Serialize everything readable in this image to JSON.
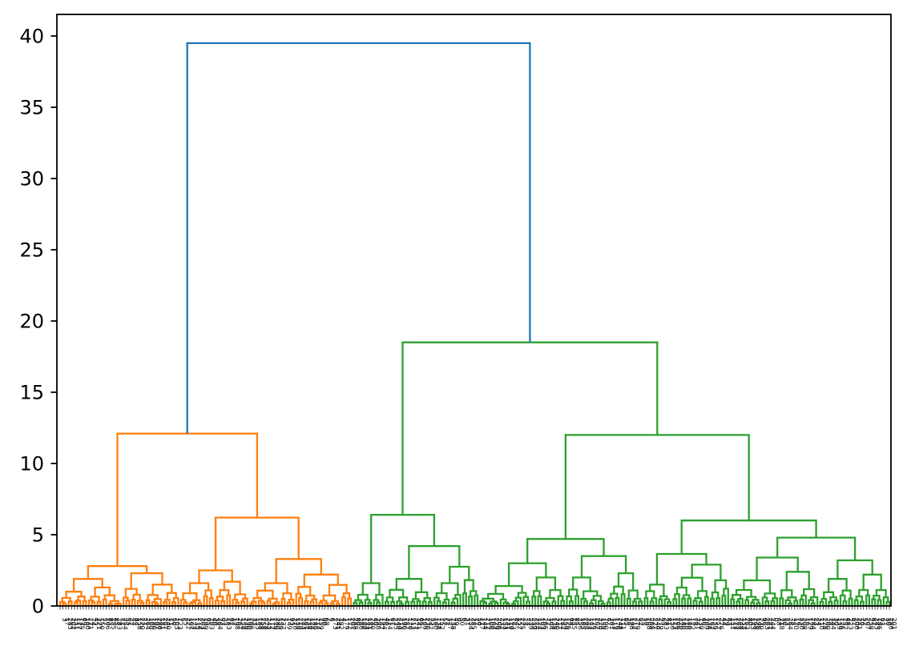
{
  "figure": {
    "background": "#ffffff",
    "kind": "matplotlib-style dendrogram figure, no title, no axis labels"
  },
  "chart_data": {
    "type": "dendrogram",
    "title": "",
    "xlabel": "",
    "ylabel": "",
    "ylim": [
      0,
      41.5
    ],
    "yticks": [
      0,
      5,
      10,
      15,
      20,
      25,
      30,
      35,
      40
    ],
    "grid": false,
    "legend": null,
    "n_leaves": 289,
    "leaf_labels_note": "each leaf has a tiny 90-degree-rotated numeric label; labels overlap into an illegible band below the axis",
    "synth_seed": 42,
    "label_seed": 7,
    "colors": {
      "root_link": "#1f77b4",
      "cluster_left": "#ff7f0e",
      "cluster_right": "#2ca02c",
      "axis": "#000000",
      "tick_text": "#000000",
      "background": "#ffffff"
    },
    "root_merge_height": 39.5,
    "tree": {
      "height": 39.5,
      "color_key": "root_link",
      "children": [
        {
          "height": 12.1,
          "color_key": "cluster_left",
          "children": [
            {
              "height": 2.8,
              "children": [
                {
                  "height": 1.9,
                  "children": [
                    {
                      "count": 10,
                      "height": 1.0
                    },
                    {
                      "count": 12,
                      "height": 1.3
                    }
                  ]
                },
                {
                  "height": 2.3,
                  "children": [
                    {
                      "count": 8,
                      "height": 1.2
                    },
                    {
                      "count": 12,
                      "height": 1.5
                    }
                  ]
                }
              ]
            },
            {
              "height": 6.2,
              "children": [
                {
                  "height": 2.5,
                  "children": [
                    {
                      "count": 12,
                      "height": 1.6
                    },
                    {
                      "count": 12,
                      "height": 1.7
                    }
                  ]
                },
                {
                  "height": 3.3,
                  "children": [
                    {
                      "count": 16,
                      "height": 1.6
                    },
                    {
                      "count": 20,
                      "height": 2.2
                    }
                  ]
                }
              ]
            }
          ]
        },
        {
          "height": 18.5,
          "color_key": "cluster_right",
          "children": [
            {
              "height": 6.4,
              "children": [
                {
                  "count": 11,
                  "height": 1.6
                },
                {
                  "height": 4.2,
                  "children": [
                    {
                      "count": 17,
                      "height": 1.9
                    },
                    {
                      "count": 16,
                      "height": 2.75
                    }
                  ]
                }
              ]
            },
            {
              "height": 12.0,
              "children": [
                {
                  "height": 4.7,
                  "children": [
                    {
                      "height": 3.0,
                      "children": [
                        {
                          "count": 18,
                          "height": 1.4
                        },
                        {
                          "count": 12,
                          "height": 2.0
                        }
                      ]
                    },
                    {
                      "height": 3.5,
                      "children": [
                        {
                          "count": 14,
                          "height": 2.0
                        },
                        {
                          "count": 13,
                          "height": 2.3
                        }
                      ]
                    }
                  ]
                },
                {
                  "height": 6.0,
                  "children": [
                    {
                      "height": 3.65,
                      "children": [
                        {
                          "count": 10,
                          "height": 1.5
                        },
                        {
                          "count": 20,
                          "height": 2.9
                        }
                      ]
                    },
                    {
                      "height": 4.8,
                      "children": [
                        {
                          "height": 3.4,
                          "children": [
                            {
                              "count": 17,
                              "height": 1.8
                            },
                            {
                              "count": 14,
                              "height": 2.4
                            }
                          ]
                        },
                        {
                          "height": 3.2,
                          "children": [
                            {
                              "count": 12,
                              "height": 1.9
                            },
                            {
                              "count": 13,
                              "height": 2.2
                            }
                          ]
                        }
                      ]
                    }
                  ]
                }
              ]
            }
          ]
        }
      ]
    }
  }
}
